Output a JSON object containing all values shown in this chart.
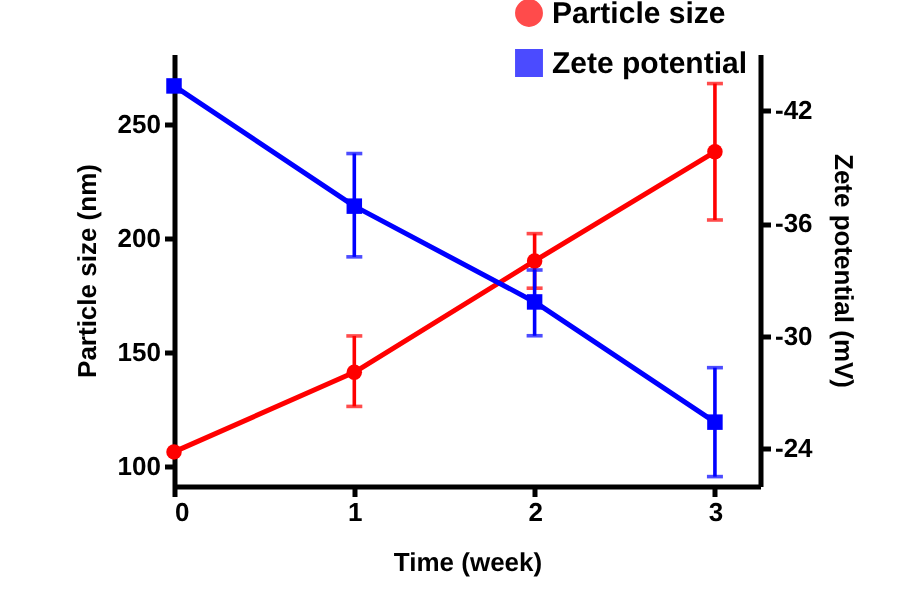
{
  "chart_data": {
    "type": "line",
    "xlabel": "Time (week)",
    "ylabel": "Particle size (nm)",
    "y2label": "Zete potential (mV)",
    "x": [
      0,
      1,
      2,
      3
    ],
    "xlim": [
      0,
      3.25
    ],
    "xticks": [
      0,
      1,
      2,
      3
    ],
    "ylim": [
      91,
      281
    ],
    "yticks": [
      100,
      150,
      200,
      250
    ],
    "y2lim": [
      -22,
      -45
    ],
    "y2ticks": [
      -42,
      -36,
      -30,
      -24
    ],
    "grid": false,
    "legend": "top right",
    "line_style": "solid",
    "series": [
      {
        "name": "Particle size",
        "color": "#ff0000",
        "marker": "circle",
        "values": [
          106,
          141,
          190,
          238
        ],
        "errors": [
          null,
          [
            126,
            157
          ],
          [
            178,
            202
          ],
          [
            208,
            268
          ]
        ]
      },
      {
        "name": "Zete potential",
        "color": "#0000ff",
        "marker": "square",
        "axis": "y2",
        "values": [
          -43.3,
          -36.9,
          -31.8,
          -25.4
        ],
        "errors": [
          null,
          [
            -39.7,
            -34.2
          ],
          [
            -33.5,
            -30.0
          ],
          [
            -28.3,
            -22.5
          ]
        ]
      }
    ]
  }
}
